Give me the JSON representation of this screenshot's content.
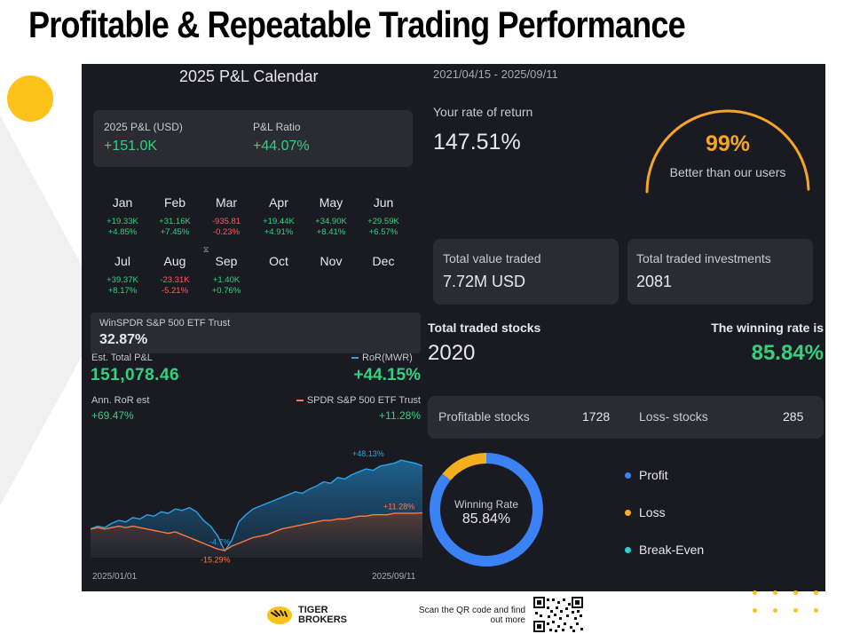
{
  "headline": "Profitable & Repeatable Trading Performance",
  "calendar": {
    "title": "2025 P&L Calendar",
    "pl_label": "2025 P&L (USD)",
    "pl_value": "+151.0K",
    "ratio_label": "P&L Ratio",
    "ratio_value": "+44.07%",
    "months": [
      {
        "name": "Jan",
        "amount": "+19.33K",
        "pct": "+4.85%",
        "status": "profit"
      },
      {
        "name": "Feb",
        "amount": "+31.16K",
        "pct": "+7.45%",
        "status": "profit"
      },
      {
        "name": "Mar",
        "amount": "-935.81",
        "pct": "-0.23%",
        "status": "loss"
      },
      {
        "name": "Apr",
        "amount": "+19.44K",
        "pct": "+4.91%",
        "status": "profit"
      },
      {
        "name": "May",
        "amount": "+34.90K",
        "pct": "+8.41%",
        "status": "profit"
      },
      {
        "name": "Jun",
        "amount": "+29.59K",
        "pct": "+6.57%",
        "status": "profit"
      },
      {
        "name": "Jul",
        "amount": "+39.37K",
        "pct": "+8.17%",
        "status": "profit"
      },
      {
        "name": "Aug",
        "amount": "-23.31K",
        "pct": "-5.21%",
        "status": "loss"
      },
      {
        "name": "Sep",
        "amount": "+1.40K",
        "pct": "+0.76%",
        "status": "profit"
      },
      {
        "name": "Oct",
        "amount": "",
        "pct": "",
        "status": "none"
      },
      {
        "name": "Nov",
        "amount": "",
        "pct": "",
        "status": "none"
      },
      {
        "name": "Dec",
        "amount": "",
        "pct": "",
        "status": "none"
      }
    ]
  },
  "benchmark": {
    "etf_label": "WinSPDR S&P 500 ETF Trust",
    "etf_value": "32.87%",
    "est_label": "Est. Total P&L",
    "est_value": "151,078.46",
    "ror_label": "RoR(MWR)",
    "ror_value": "+44.15%",
    "ann_label": "Ann. RoR est",
    "ann_value": "+69.47%",
    "spdr_label": "SPDR S&P 500 ETF Trust",
    "spdr_value": "+11.28%"
  },
  "chart_data": {
    "type": "area",
    "x_start_label": "2025/01/01",
    "x_end_label": "2025/09/11",
    "annotations": [
      "+48.13%",
      "+11.28%",
      "-4.7%",
      "-15.29%"
    ],
    "series": [
      {
        "name": "RoR(MWR)",
        "color": "#2aa3e8",
        "values": [
          0,
          2,
          1,
          4,
          6,
          5,
          8,
          7,
          10,
          9,
          12,
          11,
          14,
          13,
          15,
          12,
          6,
          2,
          -4.7,
          -15.29,
          -8,
          5,
          10,
          14,
          16,
          18,
          20,
          22,
          24,
          26,
          25,
          28,
          30,
          33,
          32,
          36,
          35,
          38,
          40,
          42,
          41,
          44,
          45,
          46,
          48.13,
          47,
          46,
          44.15
        ]
      },
      {
        "name": "SPDR S&P 500 ETF Trust",
        "color": "#ff7a3c",
        "values": [
          0,
          1,
          0,
          1,
          2,
          1,
          2,
          1,
          0,
          -1,
          -2,
          -3,
          -2,
          -4,
          -6,
          -8,
          -10,
          -12,
          -14,
          -15,
          -12,
          -10,
          -8,
          -6,
          -5,
          -4,
          -2,
          0,
          1,
          2,
          3,
          4,
          5,
          6,
          6,
          7,
          7,
          8,
          9,
          9,
          10,
          10,
          10,
          11,
          11,
          11,
          11,
          11.28
        ]
      }
    ]
  },
  "performance": {
    "date_range": "2021/04/15 - 2025/09/11",
    "return_label": "Your rate of return",
    "return_value": "147.51%",
    "percentile_value": "99%",
    "percentile_label": "Better than our users",
    "percentile_fraction": 0.99,
    "value_traded_label": "Total value traded",
    "value_traded_value": "7.72M USD",
    "investments_label": "Total traded investments",
    "investments_value": "2081",
    "stocks_label": "Total traded stocks",
    "stocks_value": "2020",
    "winning_label": "The winning rate is",
    "winning_value": "85.84%",
    "profitable_label": "Profitable stocks",
    "profitable_value": "1728",
    "loss_label": "Loss- stocks",
    "loss_value": "285"
  },
  "donut": {
    "center_label": "Winning Rate",
    "center_value": "85.84%",
    "slices": [
      {
        "name": "Profit",
        "color": "#3b82f6",
        "value": 85.84
      },
      {
        "name": "Loss",
        "color": "#f2b01e",
        "value": 14.16
      },
      {
        "name": "Break-Even",
        "color": "#2ad4d4",
        "value": 0
      }
    ]
  },
  "footer": {
    "brand_line1": "TIGER",
    "brand_line2": "BROKERS",
    "qr_text_line1": "Scan the QR code and find",
    "qr_text_line2": "out more"
  },
  "colors": {
    "accent_yellow": "#fdc21a",
    "profit_green": "#35d07f",
    "loss_red": "#ff5b5b",
    "panel_bg": "#1a1b22",
    "card_bg": "#2b2c33",
    "gauge_orange": "#f5a623"
  }
}
